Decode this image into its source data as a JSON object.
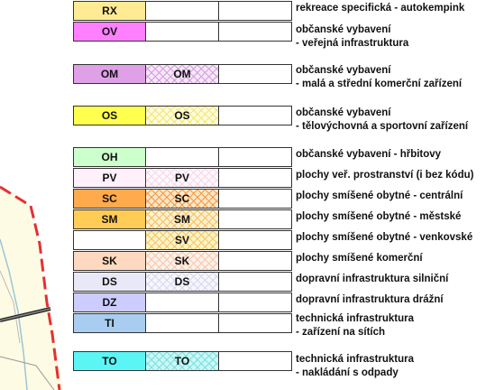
{
  "legend": [
    {
      "code": "RX",
      "hatch_code": "",
      "color": "#ffeb94",
      "hatch_color": "",
      "hatch_bg": "",
      "desc": [
        "rekreace specifická - autokempink"
      ]
    },
    {
      "code": "OV",
      "hatch_code": "",
      "color": "#ff80ff",
      "hatch_color": "",
      "hatch_bg": "",
      "desc": [
        "občanské vybavení",
        "- veřejná infrastruktura"
      ]
    },
    {
      "code": "OM",
      "hatch_code": "OM",
      "color": "#e0a0e8",
      "hatch_color": "#d49ce0",
      "hatch_bg": "#f7e8f9",
      "desc": [
        "občanské vybavení",
        "- malá a střední komerční zařízení"
      ]
    },
    {
      "code": "OS",
      "hatch_code": "OS",
      "color": "#ffff4d",
      "hatch_color": "#f2e86a",
      "hatch_bg": "#fffbe0",
      "desc": [
        "občanské vybavení",
        "- tělovýchovná a sportovní zařízení"
      ]
    },
    {
      "code": "OH",
      "hatch_code": "",
      "color": "#ccffcc",
      "hatch_color": "",
      "hatch_bg": "",
      "desc": [
        "občanské vybavení - hřbitovy"
      ]
    },
    {
      "code": "PV",
      "hatch_code": "PV",
      "color": "#fff0fb",
      "hatch_color": "#f4d8ea",
      "hatch_bg": "#fff8fd",
      "desc": [
        "plochy veř. prostranství (i bez kódu)"
      ]
    },
    {
      "code": "SC",
      "hatch_code": "SC",
      "color": "#ffaa4d",
      "hatch_color": "#f29a44",
      "hatch_bg": "#ffe6c8",
      "desc": [
        "plochy smíšené obytné - centrální"
      ]
    },
    {
      "code": "SM",
      "hatch_code": "SM",
      "color": "#ffcc55",
      "hatch_color": "#f4c060",
      "hatch_bg": "#fff1d0",
      "desc": [
        "plochy smíšené obytné - městské"
      ]
    },
    {
      "code": "",
      "hatch_code": "SV",
      "color": "#ffffff",
      "hatch_color": "#f4c760",
      "hatch_bg": "#fff3c8",
      "desc": [
        "plochy smíšené obytné - venkovské"
      ]
    },
    {
      "code": "SK",
      "hatch_code": "SK",
      "color": "#ffd9bf",
      "hatch_color": "#f2c9b0",
      "hatch_bg": "#fff1e8",
      "desc": [
        "plochy smíšené komerční"
      ]
    },
    {
      "code": "DS",
      "hatch_code": "DS",
      "color": "#e8e8f8",
      "hatch_color": "#d8d8ee",
      "hatch_bg": "#f6f6fc",
      "desc": [
        "dopravní infrastruktura silniční"
      ]
    },
    {
      "code": "DZ",
      "hatch_code": "",
      "color": "#ccccff",
      "hatch_color": "",
      "hatch_bg": "",
      "desc": [
        "dopravní infrastruktura drážní"
      ]
    },
    {
      "code": "TI",
      "hatch_code": "",
      "color": "#a8cdf0",
      "hatch_color": "",
      "hatch_bg": "",
      "desc": [
        "technická infrastruktura",
        "- zařízení na sítích"
      ]
    },
    {
      "code": "TO",
      "hatch_code": "TO",
      "color": "#5cf5f5",
      "hatch_color": "#7fdedb",
      "hatch_bg": "#c8f8f8",
      "desc": [
        "technická infrastruktura",
        "- nakládání s odpady"
      ]
    }
  ]
}
